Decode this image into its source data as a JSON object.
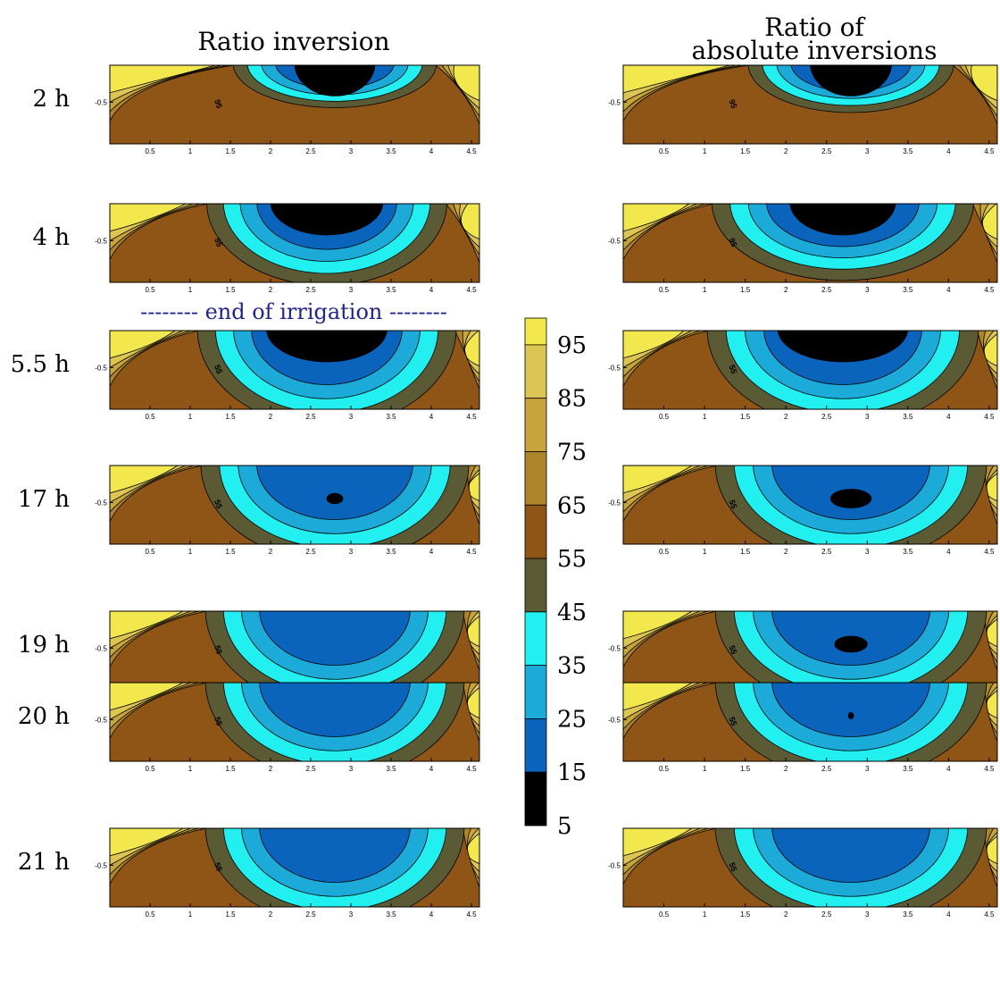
{
  "column_titles": {
    "left": "Ratio inversion",
    "right_line1": "Ratio of",
    "right_line2": "absolute inversions"
  },
  "irrigation_note": "-------- end of irrigation --------",
  "colorbar": {
    "ticks": [
      "95",
      "85",
      "75",
      "65",
      "55",
      "45",
      "35",
      "25",
      "15",
      "5"
    ],
    "bands": [
      {
        "from": 95,
        "to": 100,
        "color": "#f2e84e"
      },
      {
        "from": 85,
        "to": 95,
        "color": "#dcc553"
      },
      {
        "from": 75,
        "to": 85,
        "color": "#c8a53a"
      },
      {
        "from": 65,
        "to": 75,
        "color": "#af8529"
      },
      {
        "from": 55,
        "to": 65,
        "color": "#8f5516"
      },
      {
        "from": 45,
        "to": 55,
        "color": "#5a5a34"
      },
      {
        "from": 35,
        "to": 45,
        "color": "#22f0f0"
      },
      {
        "from": 25,
        "to": 35,
        "color": "#1caad8"
      },
      {
        "from": 15,
        "to": 25,
        "color": "#0a64bc"
      },
      {
        "from": 5,
        "to": 15,
        "color": "#000000"
      }
    ]
  },
  "colors": {
    "note": "#23238c",
    "contour_line": "#000000"
  },
  "chart_data": {
    "type": "heatmap",
    "x_ticks": [
      "0.5",
      "1",
      "1.5",
      "2",
      "2.5",
      "3",
      "3.5",
      "4",
      "4.5"
    ],
    "y_tick": "-0.5",
    "panel_label": "95",
    "rows": [
      {
        "time": "2 h",
        "left": {
          "center": 2.8,
          "black": 1.0,
          "width": 2.2,
          "depth": 0.45,
          "label": "95"
        },
        "right": {
          "center": 2.8,
          "black": 1.0,
          "width": 2.2,
          "depth": 0.5,
          "label": "95"
        }
      },
      {
        "time": "4 h",
        "left": {
          "center": 2.7,
          "black": 1.4,
          "width": 2.6,
          "depth": 0.85,
          "label": "95"
        },
        "right": {
          "center": 2.7,
          "black": 1.3,
          "width": 2.8,
          "depth": 0.8,
          "label": "95"
        }
      },
      {
        "time": "5.5 h",
        "left": {
          "center": 2.7,
          "black": 1.5,
          "width": 2.8,
          "depth": 1.0,
          "label": "55"
        },
        "right": {
          "center": 2.7,
          "black": 1.6,
          "width": 2.9,
          "depth": 1.0,
          "label": "55"
        }
      },
      {
        "time": "17 h",
        "left": {
          "center": 2.8,
          "black": 0.2,
          "width": 2.9,
          "depth": 1.0,
          "label": "55"
        },
        "right": {
          "center": 2.8,
          "black": 0.5,
          "width": 2.9,
          "depth": 1.0,
          "label": "55"
        }
      },
      {
        "time": "19 h",
        "left": {
          "center": 2.8,
          "black": 0.0,
          "width": 2.8,
          "depth": 1.0,
          "label": "55"
        },
        "right": {
          "center": 2.8,
          "black": 0.4,
          "width": 2.9,
          "depth": 1.0,
          "label": "55"
        }
      },
      {
        "time": "20 h",
        "left": {
          "center": 2.8,
          "black": 0.0,
          "width": 2.8,
          "depth": 1.0,
          "label": "55"
        },
        "right": {
          "center": 2.8,
          "black": 0.05,
          "width": 2.9,
          "depth": 1.0,
          "label": "55"
        }
      },
      {
        "time": "21 h",
        "left": {
          "center": 2.8,
          "black": 0.0,
          "width": 2.8,
          "depth": 1.0,
          "label": "55"
        },
        "right": {
          "center": 2.8,
          "black": 0.0,
          "width": 2.9,
          "depth": 1.0,
          "label": "55"
        }
      }
    ]
  }
}
